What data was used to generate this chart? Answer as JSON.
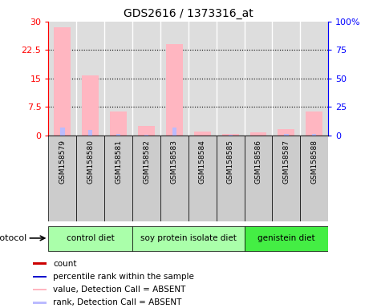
{
  "title": "GDS2616 / 1373316_at",
  "samples": [
    "GSM158579",
    "GSM158580",
    "GSM158581",
    "GSM158582",
    "GSM158583",
    "GSM158584",
    "GSM158585",
    "GSM158586",
    "GSM158587",
    "GSM158588"
  ],
  "value_absent": [
    28.5,
    15.8,
    6.3,
    2.5,
    24.0,
    1.1,
    0.5,
    0.9,
    1.7,
    6.3
  ],
  "rank_absent_pct": [
    7.0,
    5.0,
    1.5,
    0.8,
    7.0,
    0.1,
    0.4,
    0.0,
    1.2,
    1.5
  ],
  "count_present": [
    0,
    0,
    0,
    0,
    0,
    0,
    0,
    0,
    0,
    0
  ],
  "rank_present_pct": [
    0,
    0,
    0,
    0,
    0,
    0,
    0,
    0,
    0,
    0
  ],
  "ylim_left": [
    0,
    30
  ],
  "ylim_right": [
    0,
    100
  ],
  "yticks_left": [
    0,
    7.5,
    15,
    22.5,
    30
  ],
  "yticks_right": [
    0,
    25,
    50,
    75,
    100
  ],
  "ytick_labels_right": [
    "0",
    "25",
    "50",
    "75",
    "100%"
  ],
  "groups": [
    {
      "label": "control diet",
      "start": 0,
      "end": 3,
      "color": "#AAFFAA"
    },
    {
      "label": "soy protein isolate diet",
      "start": 3,
      "end": 7,
      "color": "#AAFFAA"
    },
    {
      "label": "genistein diet",
      "start": 7,
      "end": 10,
      "color": "#44EE44"
    }
  ],
  "color_value_absent": "#FFB6C1",
  "color_rank_absent": "#BBBBFF",
  "color_count": "#CC0000",
  "color_rank_present": "#0000CC",
  "bar_width": 0.6,
  "rank_bar_width": 0.15,
  "background_color": "#FFFFFF",
  "plot_bg_color": "#DDDDDD",
  "col_bg_color": "#CCCCCC"
}
